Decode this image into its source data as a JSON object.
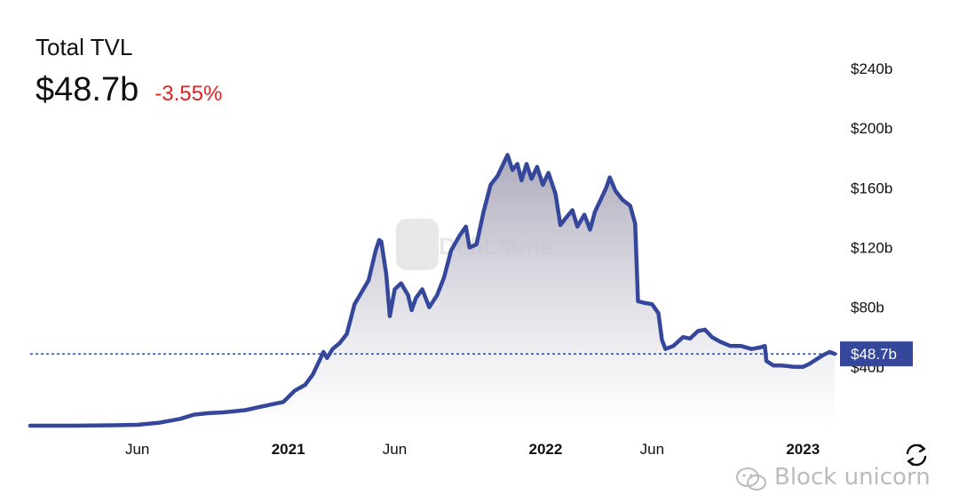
{
  "header": {
    "title": "Total TVL",
    "value": "$48.7b",
    "change": "-3.55%"
  },
  "colors": {
    "line": "#34479a",
    "change_negative": "#e02020",
    "fill_top": "#a9a6b8",
    "fill_bottom": "#ffffff",
    "badge": "#34479a"
  },
  "watermark": {
    "brand": "DefiLlama",
    "source": "Block unicorn"
  },
  "chart_data": {
    "type": "area",
    "title": "Total TVL",
    "ylabel": "",
    "xlabel": "",
    "ylim": [
      0,
      240
    ],
    "yticks": [
      {
        "value": 240,
        "label": "$240b"
      },
      {
        "value": 200,
        "label": "$200b"
      },
      {
        "value": 160,
        "label": "$160b"
      },
      {
        "value": 120,
        "label": "$120b"
      },
      {
        "value": 80,
        "label": "$80b"
      },
      {
        "value": 40,
        "label": "$40b"
      }
    ],
    "xticks": [
      {
        "date": "2020-06-01",
        "label": "Jun",
        "bold": false
      },
      {
        "date": "2021-01-01",
        "label": "2021",
        "bold": true
      },
      {
        "date": "2021-06-01",
        "label": "Jun",
        "bold": false
      },
      {
        "date": "2022-01-01",
        "label": "2022",
        "bold": true
      },
      {
        "date": "2022-06-01",
        "label": "Jun",
        "bold": false
      },
      {
        "date": "2023-01-01",
        "label": "2023",
        "bold": true
      }
    ],
    "current": {
      "value": 48.7,
      "label": "$48.7b"
    },
    "grid": false,
    "legend": "none",
    "series": [
      {
        "values": [
          [
            "2020-01-01",
            0.6
          ],
          [
            "2020-02-01",
            0.6
          ],
          [
            "2020-03-01",
            0.6
          ],
          [
            "2020-04-01",
            0.7
          ],
          [
            "2020-05-01",
            0.9
          ],
          [
            "2020-06-01",
            1.2
          ],
          [
            "2020-07-01",
            2.5
          ],
          [
            "2020-08-01",
            5.2
          ],
          [
            "2020-08-20",
            8.0
          ],
          [
            "2020-09-10",
            9.0
          ],
          [
            "2020-10-01",
            9.5
          ],
          [
            "2020-11-01",
            11.0
          ],
          [
            "2020-11-20",
            13.0
          ],
          [
            "2020-12-10",
            15.0
          ],
          [
            "2020-12-25",
            16.5
          ],
          [
            "2021-01-10",
            24.0
          ],
          [
            "2021-01-25",
            28.0
          ],
          [
            "2021-02-05",
            35.0
          ],
          [
            "2021-02-15",
            45.0
          ],
          [
            "2021-02-20",
            50.0
          ],
          [
            "2021-02-25",
            46.0
          ],
          [
            "2021-03-05",
            52.0
          ],
          [
            "2021-03-15",
            56.0
          ],
          [
            "2021-03-25",
            62.0
          ],
          [
            "2021-04-05",
            82.0
          ],
          [
            "2021-04-15",
            90.0
          ],
          [
            "2021-04-25",
            98.0
          ],
          [
            "2021-05-05",
            118.0
          ],
          [
            "2021-05-10",
            125.0
          ],
          [
            "2021-05-13",
            124.0
          ],
          [
            "2021-05-20",
            102.0
          ],
          [
            "2021-05-25",
            74.0
          ],
          [
            "2021-06-01",
            92.0
          ],
          [
            "2021-06-10",
            96.0
          ],
          [
            "2021-06-20",
            88.0
          ],
          [
            "2021-06-25",
            78.0
          ],
          [
            "2021-07-01",
            86.0
          ],
          [
            "2021-07-10",
            92.0
          ],
          [
            "2021-07-20",
            80.0
          ],
          [
            "2021-07-31",
            88.0
          ],
          [
            "2021-08-10",
            100.0
          ],
          [
            "2021-08-20",
            118.0
          ],
          [
            "2021-09-01",
            128.0
          ],
          [
            "2021-09-10",
            134.0
          ],
          [
            "2021-09-15",
            120.0
          ],
          [
            "2021-09-25",
            122.0
          ],
          [
            "2021-10-05",
            144.0
          ],
          [
            "2021-10-15",
            162.0
          ],
          [
            "2021-10-25",
            168.0
          ],
          [
            "2021-11-01",
            175.0
          ],
          [
            "2021-11-08",
            182.0
          ],
          [
            "2021-11-15",
            172.0
          ],
          [
            "2021-11-22",
            176.0
          ],
          [
            "2021-11-28",
            165.0
          ],
          [
            "2021-12-05",
            176.0
          ],
          [
            "2021-12-12",
            166.0
          ],
          [
            "2021-12-20",
            174.0
          ],
          [
            "2021-12-28",
            162.0
          ],
          [
            "2022-01-05",
            170.0
          ],
          [
            "2022-01-15",
            156.0
          ],
          [
            "2022-01-22",
            135.0
          ],
          [
            "2022-01-30",
            140.0
          ],
          [
            "2022-02-08",
            145.0
          ],
          [
            "2022-02-15",
            134.0
          ],
          [
            "2022-02-25",
            142.0
          ],
          [
            "2022-03-05",
            132.0
          ],
          [
            "2022-03-12",
            144.0
          ],
          [
            "2022-03-20",
            152.0
          ],
          [
            "2022-03-28",
            160.0
          ],
          [
            "2022-04-02",
            167.0
          ],
          [
            "2022-04-10",
            158.0
          ],
          [
            "2022-04-20",
            152.0
          ],
          [
            "2022-05-01",
            148.0
          ],
          [
            "2022-05-08",
            136.0
          ],
          [
            "2022-05-12",
            84.0
          ],
          [
            "2022-05-20",
            83.0
          ],
          [
            "2022-06-01",
            82.0
          ],
          [
            "2022-06-10",
            76.0
          ],
          [
            "2022-06-15",
            58.0
          ],
          [
            "2022-06-20",
            52.0
          ],
          [
            "2022-07-01",
            54.0
          ],
          [
            "2022-07-15",
            60.0
          ],
          [
            "2022-07-25",
            59.0
          ],
          [
            "2022-08-05",
            64.0
          ],
          [
            "2022-08-15",
            65.0
          ],
          [
            "2022-08-25",
            60.0
          ],
          [
            "2022-09-05",
            57.0
          ],
          [
            "2022-09-20",
            54.0
          ],
          [
            "2022-10-05",
            54.0
          ],
          [
            "2022-10-20",
            52.0
          ],
          [
            "2022-11-01",
            53.0
          ],
          [
            "2022-11-08",
            54.0
          ],
          [
            "2022-11-10",
            44.0
          ],
          [
            "2022-11-20",
            41.0
          ],
          [
            "2022-12-01",
            41.0
          ],
          [
            "2022-12-20",
            40.0
          ],
          [
            "2023-01-01",
            40.0
          ],
          [
            "2023-01-10",
            42.0
          ],
          [
            "2023-01-20",
            45.0
          ],
          [
            "2023-01-30",
            48.0
          ],
          [
            "2023-02-08",
            50.0
          ],
          [
            "2023-02-15",
            48.7
          ]
        ]
      }
    ]
  }
}
